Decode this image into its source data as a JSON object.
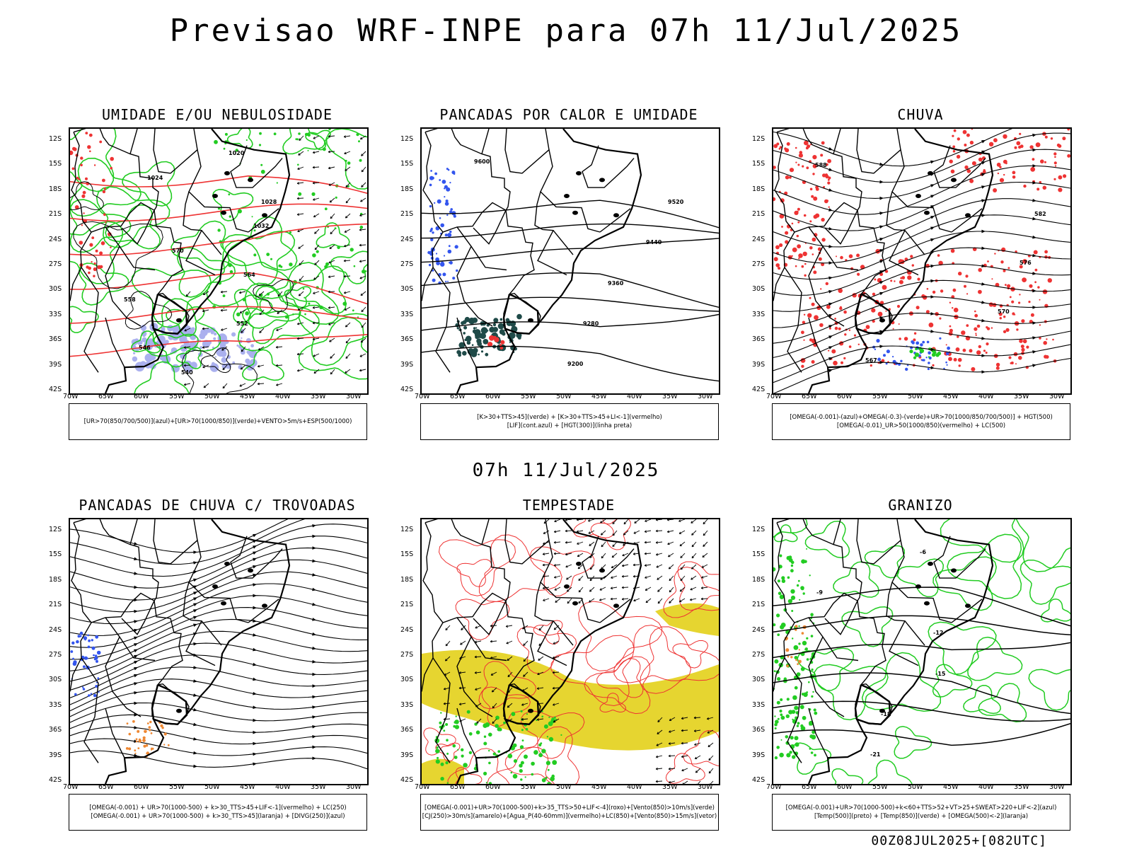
{
  "header": {
    "title": "Previsao WRF-INPE  para 07h 11/Jul/2025",
    "subtitle": "07h 11/Jul/2025",
    "footer": "00Z08JUL2025+[082UTC]"
  },
  "axes": {
    "lat_labels": [
      "12S",
      "15S",
      "18S",
      "21S",
      "24S",
      "27S",
      "30S",
      "33S",
      "36S",
      "39S",
      "42S"
    ],
    "lon_labels": [
      "70W",
      "65W",
      "60W",
      "55W",
      "50W",
      "45W",
      "40W",
      "35W",
      "30W"
    ]
  },
  "panels": [
    {
      "title": "UMIDADE E/OU NEBULOSIDADE",
      "legend": [
        "[UR>70(850/700/500)](azul)+[UR>70(1000/850)](verde)+VENTO>5m/s+ESP(500/1000)"
      ],
      "contour_labels": [
        "1020",
        "1024",
        "1028",
        "1032",
        "570",
        "564",
        "558",
        "552",
        "546",
        "540"
      ]
    },
    {
      "title": "PANCADAS POR CALOR E UMIDADE",
      "legend": [
        "[K>30+TTS>45](verde) + [K>30+TTS>45+LI<-1](vermelho)",
        "[LIF](cont.azul) + [HGT(300)](linha preta)"
      ],
      "contour_labels": [
        "9600",
        "9520",
        "9440",
        "9360",
        "9280",
        "9200"
      ]
    },
    {
      "title": "CHUVA",
      "legend": [
        "[OMEGA(-0.001)-(azul)+OMEGA(-0.3)-(verde)+UR>70(1000/850/700/500)] + HGT(500)",
        "[OMEGA(-0.01)_UR>50(1000/850)(vermelho) + LC(500)"
      ],
      "contour_labels": [
        "588",
        "582",
        "576",
        "570",
        "567"
      ]
    },
    {
      "title": "PANCADAS DE CHUVA C/ TROVOADAS",
      "legend": [
        "[OMEGA(-0.001) + UR>70(1000-500) + k>30_TTS>45+LIF<-1](vermelho) + LC(250)",
        "[OMEGA(-0.001) + UR>70(1000-500) + k>30_TTS>45](laranja) + [DIVG(250)](azul)"
      ],
      "contour_labels": []
    },
    {
      "title": "TEMPESTADE",
      "legend": [
        "[OMEGA(-0.001)+UR>70(1000-500)+k>35_TTS>50+LIF<-4](roxo)+[Vento(850)>10m/s](verde)",
        "[CJ(250)>30m/s](amarelo)+[Agua_P(40-60mm)](vermelho)+LC(850)+[Vento(850)>15m/s](vetor)"
      ],
      "contour_labels": []
    },
    {
      "title": "GRANIZO",
      "legend": [
        "[OMEGA(-0.001)+UR>70(1000-500)+k<60+TTS>52+VT>25+SWEAT>220+LIF<-2](azul)",
        "[Temp(500)](preto) + [Temp(850)](verde) + [OMEGA(500)<-2](laranja)"
      ],
      "contour_labels": [
        "-6",
        "-9",
        "-12",
        "-15",
        "-18",
        "-21"
      ]
    }
  ],
  "colors": {
    "coast": "#000000",
    "green": "#22cc22",
    "red": "#ee3333",
    "blue": "#3355ee",
    "lavender": "#aab0ee",
    "yellow": "#e6d530",
    "darkteal": "#1f4a48",
    "orange": "#ee8833"
  }
}
